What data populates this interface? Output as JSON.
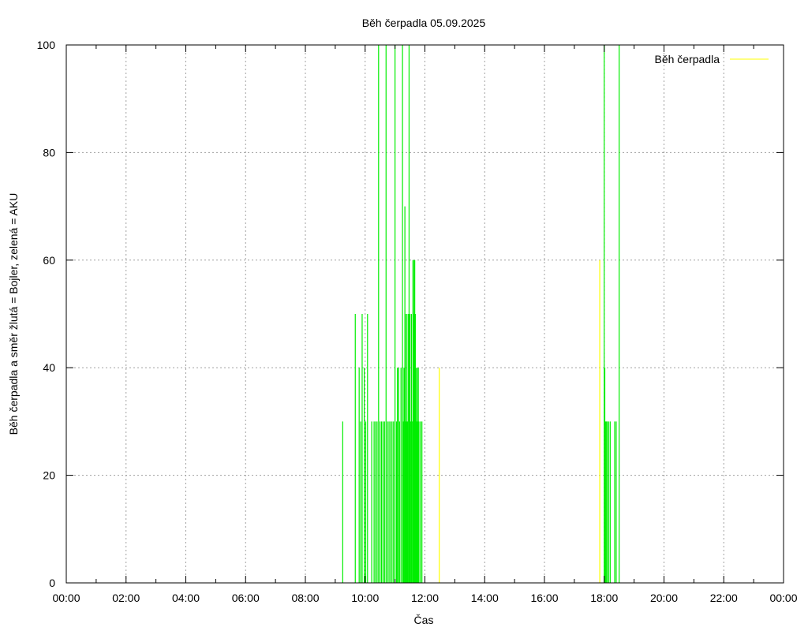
{
  "chart_data": {
    "type": "bar",
    "title": "Běh čerpadla 05.09.2025",
    "xlabel": "Čas",
    "ylabel": "Běh čerpadla a směr žlutá = Bojler, zelená = AKU",
    "xlim": [
      0,
      24
    ],
    "ylim": [
      0,
      100
    ],
    "x_unit": "hours",
    "xticks": [
      "00:00",
      "02:00",
      "04:00",
      "06:00",
      "08:00",
      "10:00",
      "12:00",
      "14:00",
      "16:00",
      "18:00",
      "20:00",
      "22:00",
      "00:00"
    ],
    "yticks": [
      0,
      20,
      40,
      60,
      80,
      100
    ],
    "grid": true,
    "legend": {
      "position": "top-right",
      "entries": [
        {
          "label": "Běh čerpadla",
          "color": "#ffff00"
        }
      ]
    },
    "colors": {
      "aku": "#00ee00",
      "bojler": "#ffff00",
      "grid": "#a0a0a0"
    },
    "series": [
      {
        "name": "zelená = AKU",
        "color": "#00ee00",
        "style": "impulses",
        "x": [
          9.25,
          9.67,
          9.8,
          9.85,
          9.9,
          9.97,
          10.02,
          10.08,
          10.22,
          10.3,
          10.35,
          10.4,
          10.45,
          10.5,
          10.55,
          10.6,
          10.65,
          10.7,
          10.75,
          10.8,
          10.85,
          10.9,
          10.95,
          11.0,
          11.05,
          11.08,
          11.12,
          11.15,
          11.2,
          11.25,
          11.28,
          11.3,
          11.33,
          11.35,
          11.38,
          11.4,
          11.42,
          11.45,
          11.47,
          11.5,
          11.52,
          11.55,
          11.57,
          11.6,
          11.62,
          11.64,
          11.66,
          11.68,
          11.7,
          11.72,
          11.74,
          11.76,
          11.78,
          11.8,
          11.85,
          11.9,
          18.0,
          18.02,
          18.05,
          18.08,
          18.1,
          18.15,
          18.2,
          18.35,
          18.4,
          18.5
        ],
        "y": [
          30,
          50,
          40,
          30,
          50,
          40,
          30,
          50,
          30,
          30,
          30,
          30,
          100,
          30,
          30,
          30,
          30,
          100,
          30,
          30,
          30,
          30,
          30,
          100,
          30,
          40,
          40,
          30,
          40,
          100,
          30,
          40,
          70,
          50,
          30,
          50,
          30,
          50,
          100,
          50,
          30,
          50,
          30,
          60,
          60,
          50,
          60,
          50,
          40,
          30,
          40,
          30,
          40,
          30,
          30,
          30,
          100,
          40,
          30,
          30,
          30,
          30,
          30,
          30,
          30,
          100
        ]
      },
      {
        "name": "žlutá = Bojler",
        "color": "#ffff00",
        "style": "impulses",
        "x": [
          12.48,
          17.85
        ],
        "y": [
          40,
          60
        ]
      }
    ]
  }
}
